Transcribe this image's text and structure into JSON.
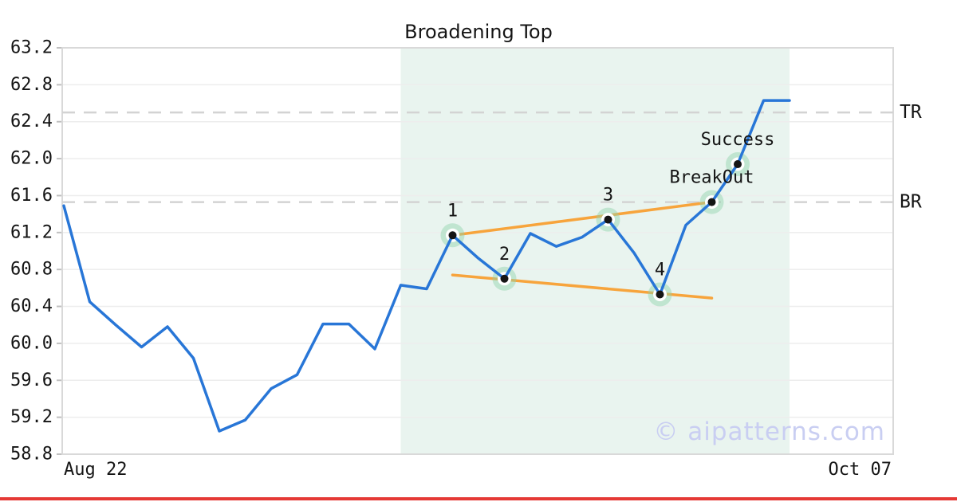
{
  "page": {
    "title": "Broadening Top"
  },
  "colors": {
    "price_line": "#2876d7",
    "trendline": "#f7a43c",
    "pattern_region": "#e9f4ef",
    "marker_halo": "rgba(141,210,171,0.45)",
    "marker_dot": "#151515",
    "level_dash": "#d3d3d3",
    "grid": "#ededed",
    "border": "#d9d9d9",
    "tick": "#c0c0c0",
    "text": "#141414",
    "watermark": "#c9cef2",
    "accent_bar": "#e53935"
  },
  "chart_data": {
    "type": "line",
    "title": "Broadening Top",
    "x_axis": {
      "left_label": "Aug 22",
      "right_label": "Oct 07"
    },
    "y_ticks": [
      "63.2",
      "62.8",
      "62.4",
      "62.0",
      "61.6",
      "61.2",
      "60.8",
      "60.4",
      "60.0",
      "59.6",
      "59.2",
      "58.8"
    ],
    "ylim": [
      58.8,
      63.2
    ],
    "grid": true,
    "series": [
      {
        "name": "price",
        "values": [
          61.49,
          60.45,
          60.2,
          59.96,
          60.18,
          59.84,
          59.05,
          59.17,
          59.51,
          59.66,
          60.21,
          60.21,
          59.94,
          60.63,
          60.59,
          61.17,
          60.92,
          60.7,
          61.19,
          61.05,
          61.15,
          61.34,
          60.98,
          60.53,
          61.28,
          61.53,
          61.94,
          62.63,
          62.63
        ]
      }
    ],
    "pattern_region": {
      "start_index": 13,
      "end_index": 28
    },
    "levels": [
      {
        "label": "TR",
        "value": 62.5
      },
      {
        "label": "BR",
        "value": 61.53
      }
    ],
    "trendlines": [
      {
        "name": "upper-broadening-line",
        "x1_index": 15,
        "y1": 61.17,
        "x2_index": 25,
        "y2": 61.53
      },
      {
        "name": "lower-broadening-line",
        "x1_index": 15,
        "y1": 60.74,
        "x2_index": 25,
        "y2": 60.49
      }
    ],
    "markers": [
      {
        "index": 15,
        "value": 61.17,
        "label": "1"
      },
      {
        "index": 17,
        "value": 60.7,
        "label": "2"
      },
      {
        "index": 21,
        "value": 61.34,
        "label": "3"
      },
      {
        "index": 23,
        "value": 60.53,
        "label": "4"
      },
      {
        "index": 25,
        "value": 61.53,
        "label": "BreakOut"
      },
      {
        "index": 26,
        "value": 61.94,
        "label": "Success"
      }
    ],
    "watermark": "© aipatterns.com"
  }
}
